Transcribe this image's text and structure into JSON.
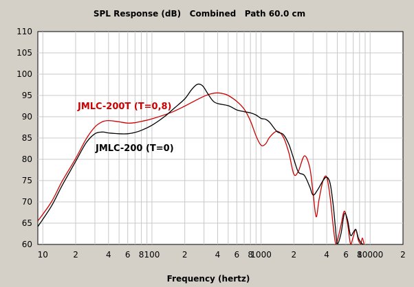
{
  "chart_data": {
    "type": "line",
    "title": "SPL Response (dB)   Combined   Path 60.0 cm",
    "xlabel": "Frequency (hertz)",
    "ylabel": "",
    "x_scale": "log",
    "xlim": [
      9,
      20000
    ],
    "ylim": [
      60,
      110
    ],
    "grid": true,
    "y_ticks": [
      110,
      105,
      100,
      95,
      90,
      85,
      80,
      75,
      70,
      65,
      60
    ],
    "x_ticks": [
      {
        "value": 10,
        "label": "10"
      },
      {
        "value": 20,
        "label": "2"
      },
      {
        "value": 40,
        "label": "4"
      },
      {
        "value": 60,
        "label": "6"
      },
      {
        "value": 80,
        "label": "8"
      },
      {
        "value": 100,
        "label": "100"
      },
      {
        "value": 200,
        "label": "2"
      },
      {
        "value": 400,
        "label": "4"
      },
      {
        "value": 600,
        "label": "6"
      },
      {
        "value": 800,
        "label": "8"
      },
      {
        "value": 1000,
        "label": "1000"
      },
      {
        "value": 2000,
        "label": "2"
      },
      {
        "value": 4000,
        "label": "4"
      },
      {
        "value": 6000,
        "label": "6"
      },
      {
        "value": 8000,
        "label": "8"
      },
      {
        "value": 10000,
        "label": "10000"
      },
      {
        "value": 20000,
        "label": "2"
      }
    ],
    "series": [
      {
        "name": "JMLC-200T (T=0,8)",
        "color": "#cc0000",
        "points": [
          [
            9,
            65.5
          ],
          [
            12,
            70
          ],
          [
            15,
            74.8
          ],
          [
            20,
            80.2
          ],
          [
            25,
            84.8
          ],
          [
            30,
            87.6
          ],
          [
            35,
            88.8
          ],
          [
            40,
            89.1
          ],
          [
            50,
            88.8
          ],
          [
            60,
            88.5
          ],
          [
            70,
            88.6
          ],
          [
            80,
            88.9
          ],
          [
            100,
            89.5
          ],
          [
            150,
            91
          ],
          [
            200,
            92.5
          ],
          [
            250,
            93.8
          ],
          [
            300,
            94.8
          ],
          [
            350,
            95.4
          ],
          [
            400,
            95.6
          ],
          [
            450,
            95.4
          ],
          [
            500,
            95
          ],
          [
            600,
            93.6
          ],
          [
            700,
            91.8
          ],
          [
            800,
            89
          ],
          [
            900,
            85.5
          ],
          [
            1000,
            83.3
          ],
          [
            1100,
            83.6
          ],
          [
            1200,
            85.2
          ],
          [
            1400,
            86.6
          ],
          [
            1600,
            85.2
          ],
          [
            1800,
            81.5
          ],
          [
            2000,
            76.5
          ],
          [
            2200,
            77.2
          ],
          [
            2500,
            80.8
          ],
          [
            2800,
            78
          ],
          [
            3000,
            72
          ],
          [
            3200,
            66.5
          ],
          [
            3400,
            70.5
          ],
          [
            3700,
            75
          ],
          [
            4000,
            75.8
          ],
          [
            4300,
            71
          ],
          [
            4600,
            64
          ],
          [
            4800,
            60.5
          ],
          [
            5000,
            60.8
          ],
          [
            5400,
            64.5
          ],
          [
            5800,
            67.8
          ],
          [
            6200,
            65
          ],
          [
            6600,
            60.2
          ],
          [
            7000,
            61.8
          ],
          [
            7400,
            63.5
          ],
          [
            7800,
            61
          ],
          [
            8200,
            60.2
          ],
          [
            8500,
            61.5
          ],
          [
            8800,
            60
          ]
        ]
      },
      {
        "name": "JMLC-200 (T=0)",
        "color": "#000000",
        "points": [
          [
            9,
            64.2
          ],
          [
            12,
            69
          ],
          [
            15,
            73.8
          ],
          [
            20,
            79.5
          ],
          [
            25,
            83.9
          ],
          [
            30,
            86
          ],
          [
            35,
            86.4
          ],
          [
            40,
            86.2
          ],
          [
            50,
            86
          ],
          [
            60,
            86
          ],
          [
            70,
            86.3
          ],
          [
            80,
            86.8
          ],
          [
            100,
            88
          ],
          [
            130,
            90
          ],
          [
            160,
            92
          ],
          [
            200,
            94.2
          ],
          [
            230,
            96.3
          ],
          [
            260,
            97.6
          ],
          [
            290,
            97.3
          ],
          [
            320,
            95.7
          ],
          [
            360,
            93.8
          ],
          [
            400,
            93.1
          ],
          [
            500,
            92.6
          ],
          [
            600,
            91.6
          ],
          [
            700,
            91.2
          ],
          [
            800,
            90.9
          ],
          [
            900,
            90.4
          ],
          [
            1000,
            89.6
          ],
          [
            1100,
            89.4
          ],
          [
            1200,
            88.7
          ],
          [
            1400,
            86.5
          ],
          [
            1600,
            85.8
          ],
          [
            1800,
            83.5
          ],
          [
            2000,
            80
          ],
          [
            2200,
            77
          ],
          [
            2500,
            76.2
          ],
          [
            2800,
            73.5
          ],
          [
            3000,
            71.6
          ],
          [
            3300,
            72.8
          ],
          [
            3700,
            75
          ],
          [
            4000,
            75.8
          ],
          [
            4300,
            74.3
          ],
          [
            4600,
            69
          ],
          [
            4800,
            64
          ],
          [
            5000,
            60.2
          ],
          [
            5400,
            62.5
          ],
          [
            5800,
            67.2
          ],
          [
            6200,
            65.8
          ],
          [
            6600,
            62.2
          ],
          [
            7000,
            62.8
          ],
          [
            7400,
            63.5
          ],
          [
            7800,
            61.5
          ],
          [
            8200,
            60.5
          ],
          [
            8600,
            60
          ]
        ]
      }
    ],
    "annotations": [
      {
        "text": "JMLC-200T (T=0,8)",
        "color": "#cc0000"
      },
      {
        "text": "JMLC-200 (T=0)",
        "color": "#000000"
      }
    ]
  }
}
